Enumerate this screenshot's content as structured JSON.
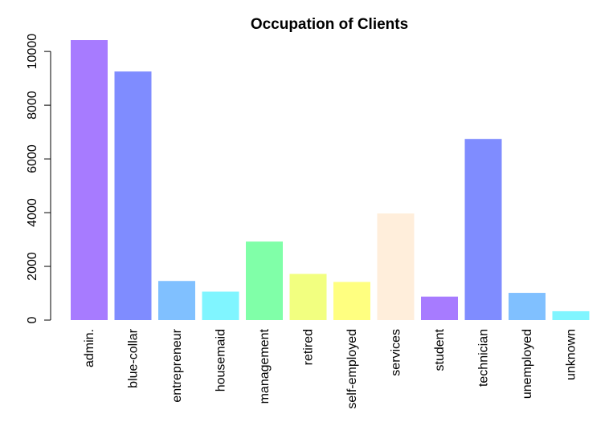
{
  "chart_data": {
    "type": "bar",
    "title": "Occupation of Clients",
    "xlabel": "",
    "ylabel": "",
    "categories": [
      "admin.",
      "blue-collar",
      "entrepreneur",
      "housemaid",
      "management",
      "retired",
      "self-employed",
      "services",
      "student",
      "technician",
      "unemployed",
      "unknown"
    ],
    "values": [
      10422,
      9254,
      1456,
      1060,
      2924,
      1720,
      1421,
      3969,
      875,
      6743,
      1014,
      330
    ],
    "colors": [
      "#A77BFF",
      "#7F8CFF",
      "#80C0FF",
      "#80F5FF",
      "#80FFA8",
      "#F2FF80",
      "#FFFF80",
      "#FFEEDB",
      "#A77BFF",
      "#7F8CFF",
      "#80C0FF",
      "#80F5FF"
    ],
    "yticks": [
      0,
      2000,
      4000,
      6000,
      8000,
      10000
    ],
    "ylim": [
      0,
      10422
    ],
    "grid": false,
    "legend": "none"
  }
}
